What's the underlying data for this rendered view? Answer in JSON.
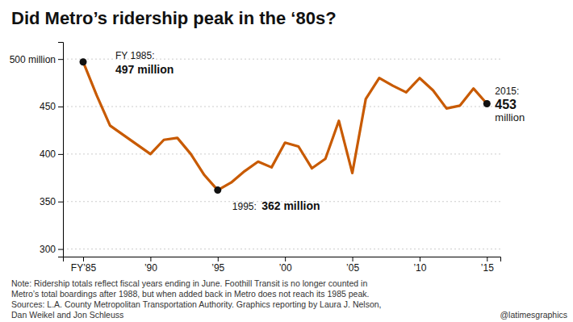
{
  "chart_data": {
    "type": "line",
    "title": "Did Metro’s ridership peak in the ‘80s?",
    "x": [
      1985,
      1986,
      1987,
      1988,
      1989,
      1990,
      1991,
      1992,
      1993,
      1994,
      1995,
      1996,
      1997,
      1998,
      1999,
      2000,
      2001,
      2002,
      2003,
      2004,
      2005,
      2006,
      2007,
      2008,
      2009,
      2010,
      2011,
      2012,
      2013,
      2014,
      2015
    ],
    "values": [
      497,
      462,
      430,
      420,
      410,
      400,
      415,
      417,
      400,
      378,
      362,
      370,
      382,
      392,
      386,
      412,
      408,
      385,
      395,
      435,
      380,
      458,
      480,
      472,
      465,
      480,
      467,
      448,
      451,
      469,
      453
    ],
    "color": "#C85A00",
    "xlim": [
      1983.5,
      2016.0
    ],
    "xticks": [
      {
        "value": 1985,
        "label": "FY’85"
      },
      {
        "value": 1990,
        "label": "’90"
      },
      {
        "value": 1995,
        "label": "’95"
      },
      {
        "value": 2000,
        "label": "’00"
      },
      {
        "value": 2005,
        "label": "’05"
      },
      {
        "value": 2010,
        "label": "’10"
      },
      {
        "value": 2015,
        "label": "’15"
      }
    ],
    "ylim": [
      292,
      518
    ],
    "yticks": [
      300,
      350,
      400,
      450,
      {
        "value": 500,
        "label": "500 million"
      }
    ],
    "grid": true,
    "annotations": [
      {
        "x": 1985,
        "y": 497,
        "labels": [
          "FY 1985:",
          "497 million"
        ]
      },
      {
        "x": 1995,
        "y": 362,
        "labels": [
          "1995: ",
          "362 million"
        ]
      },
      {
        "x": 2015,
        "y": 453,
        "labels": [
          "2015:",
          "453",
          "million"
        ]
      }
    ],
    "note": [
      "Note: Ridership totals reflect fiscal years ending in June. Foothill Transit is no longer counted in",
      "Metro’s total boardings after 1988, but when added back in Metro does not reach its 1985 peak.",
      "Sources: L.A. County Metropolitan Transportation Authority. Graphics reporting by Laura J. Nelson,",
      "Dan Weikel and Jon Schleuss"
    ],
    "credit": "@latimesgraphics"
  }
}
